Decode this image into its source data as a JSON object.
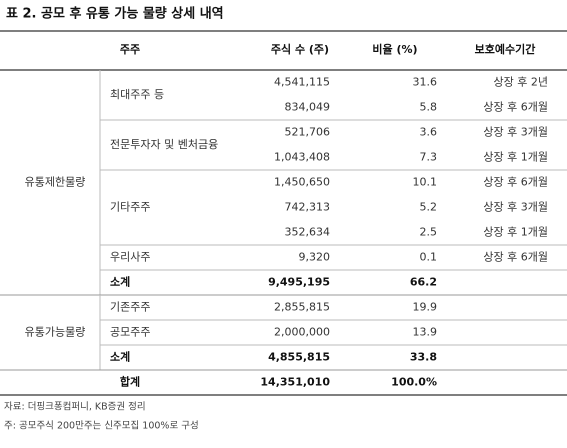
{
  "header": {
    "title": "표 2. 공모 후 유통 가능 물량 상세 내역"
  },
  "table": {
    "columns": [
      "주주",
      "주식 수 (주)",
      "비율 (%)",
      "보호예수기간"
    ],
    "groups": [
      {
        "label": "유통제한물량",
        "subgroups": [
          {
            "label": "최대주주 등",
            "rows": [
              [
                "4,541,115",
                "31.6",
                "상장 후 2년"
              ],
              [
                "834,049",
                "5.8",
                "상장 후 6개월"
              ]
            ]
          },
          {
            "label": "전문투자자 및 벤처금융",
            "rows": [
              [
                "521,706",
                "3.6",
                "상장 후 3개월"
              ],
              [
                "1,043,408",
                "7.3",
                "상장 후 1개월"
              ]
            ]
          },
          {
            "label": "기타주주",
            "rows": [
              [
                "1,450,650",
                "10.1",
                "상장 후 6개월"
              ],
              [
                "742,313",
                "5.2",
                "상장 후 3개월"
              ],
              [
                "352,634",
                "2.5",
                "상장 후 1개월"
              ]
            ]
          },
          {
            "label": "우리사주",
            "rows": [
              [
                "9,320",
                "0.1",
                "상장 후 6개월"
              ]
            ]
          }
        ],
        "subtotal": {
          "label": "소계",
          "shares": "9,495,195",
          "ratio": "66.2"
        }
      },
      {
        "label": "유통가능물량",
        "subgroups": [
          {
            "label": "기존주주",
            "rows": [
              [
                "2,855,815",
                "19.9"
              ]
            ]
          },
          {
            "label": "공모주주",
            "rows": [
              [
                "2,000,000",
                "13.9"
              ]
            ]
          }
        ],
        "subtotal": {
          "label": "소계",
          "shares": "4,855,815",
          "ratio": "33.8"
        }
      }
    ],
    "total": {
      "label": "합계",
      "shares": "14,351,010",
      "ratio": "100.0%"
    }
  },
  "notes": [
    "자료: 더핑크퐁컴퍼니, KB증권 정리",
    "주: 공모주식 200만주는 신주모집 100%로 구성"
  ]
}
